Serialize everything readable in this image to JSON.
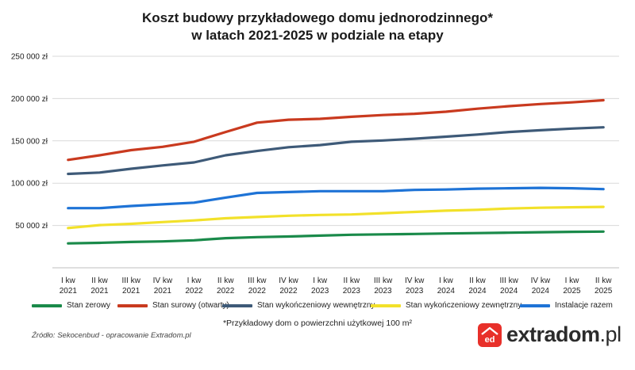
{
  "chart_data": {
    "type": "line",
    "title": [
      "Koszt budowy przykładowego domu jednorodzinnego*",
      "w latach 2021-2025 w podziale na etapy"
    ],
    "categories": [
      [
        "I kw",
        "2021"
      ],
      [
        "II kw",
        "2021"
      ],
      [
        "III kw",
        "2021"
      ],
      [
        "IV kw",
        "2021"
      ],
      [
        "I kw",
        "2022"
      ],
      [
        "II kw",
        "2022"
      ],
      [
        "III kw",
        "2022"
      ],
      [
        "IV kw",
        "2022"
      ],
      [
        "I kw",
        "2023"
      ],
      [
        "II kw",
        "2023"
      ],
      [
        "III kw",
        "2023"
      ],
      [
        "IV kw",
        "2023"
      ],
      [
        "I kw",
        "2024"
      ],
      [
        "II kw",
        "2024"
      ],
      [
        "III kw",
        "2024"
      ],
      [
        "IV kw",
        "2024"
      ],
      [
        "I kw",
        "2025"
      ],
      [
        "II kw",
        "2025"
      ]
    ],
    "ylim": [
      0,
      250000
    ],
    "yticks": [
      {
        "value": 50000,
        "label": "50 000 zł"
      },
      {
        "value": 100000,
        "label": "100 000 zł"
      },
      {
        "value": 150000,
        "label": "150 000 zł"
      },
      {
        "value": 200000,
        "label": "200 000 zł"
      },
      {
        "value": 250000,
        "label": "250 000 zł"
      }
    ],
    "grid": true,
    "legend_position": "bottom",
    "series": [
      {
        "name": "Stan zerowy",
        "color": "#1a8a4a",
        "values": [
          28800,
          29500,
          30500,
          31200,
          32500,
          35000,
          36200,
          37000,
          38000,
          39000,
          39500,
          40000,
          40500,
          41000,
          41500,
          42000,
          42500,
          42800
        ]
      },
      {
        "name": "Stan surowy (otwarty)",
        "color": "#c93a1f",
        "values": [
          127500,
          133000,
          139000,
          143000,
          149000,
          160500,
          171500,
          175000,
          176000,
          178500,
          180500,
          182000,
          184500,
          188000,
          191000,
          193500,
          195500,
          198000
        ]
      },
      {
        "name": "Stan wykończeniowy wewnętrzny",
        "color": "#3e5a78",
        "values": [
          111000,
          112500,
          117000,
          121000,
          124500,
          133000,
          138000,
          142500,
          145000,
          149000,
          150500,
          152500,
          155000,
          157500,
          160500,
          162500,
          164500,
          166000
        ]
      },
      {
        "name": "Stan wykończeniowy zewnętrzny",
        "color": "#f2e12a",
        "values": [
          47000,
          50500,
          52000,
          54000,
          56000,
          58500,
          60000,
          61500,
          62500,
          63000,
          64500,
          66000,
          67500,
          68500,
          70000,
          71000,
          71500,
          72000
        ]
      },
      {
        "name": "Instalacje razem",
        "color": "#1e73d6",
        "values": [
          70500,
          70500,
          73000,
          75000,
          77000,
          83000,
          88500,
          89500,
          90500,
          90500,
          90500,
          92000,
          92500,
          93500,
          94000,
          94500,
          94000,
          93000
        ]
      }
    ]
  },
  "footnote": "*Przykładowy dom o powierzchni użytkowej 100 m²",
  "source": "Źródło: Sekocenbud - opracowanie Extradom.pl",
  "logo": {
    "mark": "ed",
    "name": "extradom",
    "tld": ".pl",
    "color": "#e8302a"
  }
}
